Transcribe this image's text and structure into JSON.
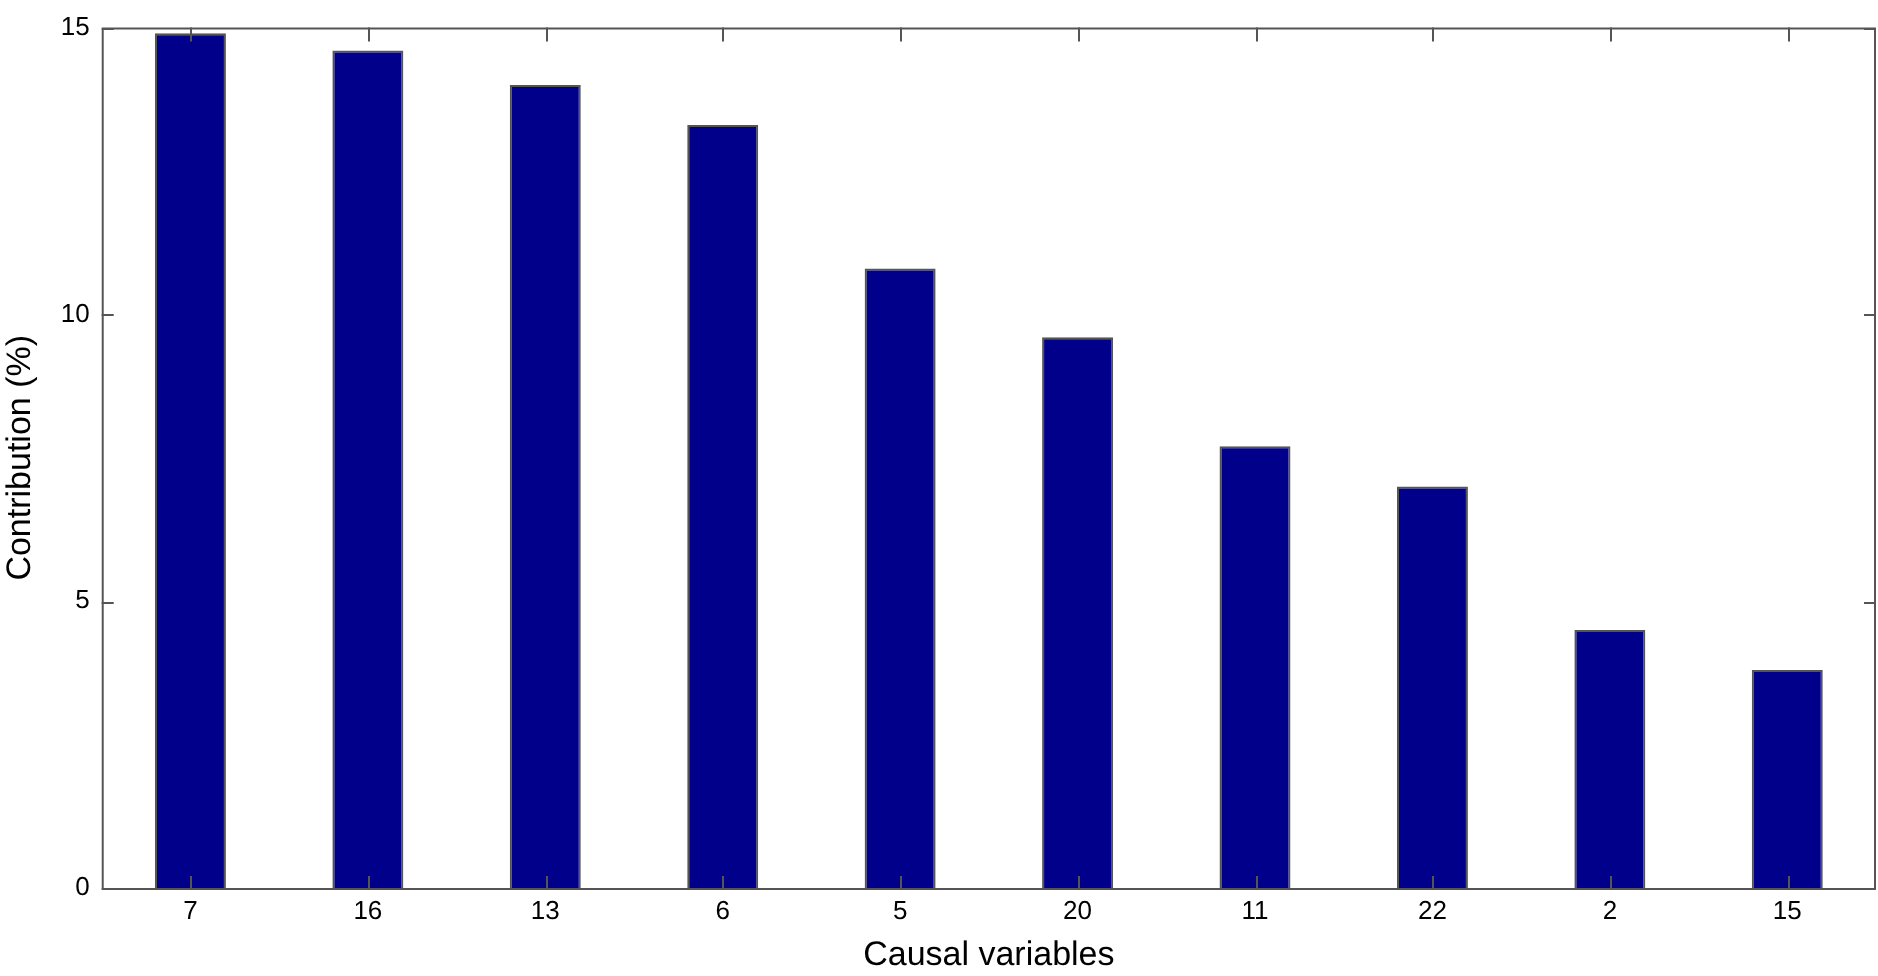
{
  "chart_data": {
    "type": "bar",
    "xlabel": "Causal variables",
    "ylabel": "Contribution (%)",
    "categories": [
      "7",
      "16",
      "13",
      "6",
      "5",
      "20",
      "11",
      "22",
      "2",
      "15"
    ],
    "values": [
      14.9,
      14.6,
      14.0,
      13.3,
      10.8,
      9.6,
      7.7,
      7.0,
      4.5,
      3.8
    ],
    "color": "#00008b",
    "ylim": [
      0,
      15
    ],
    "yticks": [
      0,
      5,
      10,
      15
    ],
    "grid": false,
    "legend": false
  }
}
